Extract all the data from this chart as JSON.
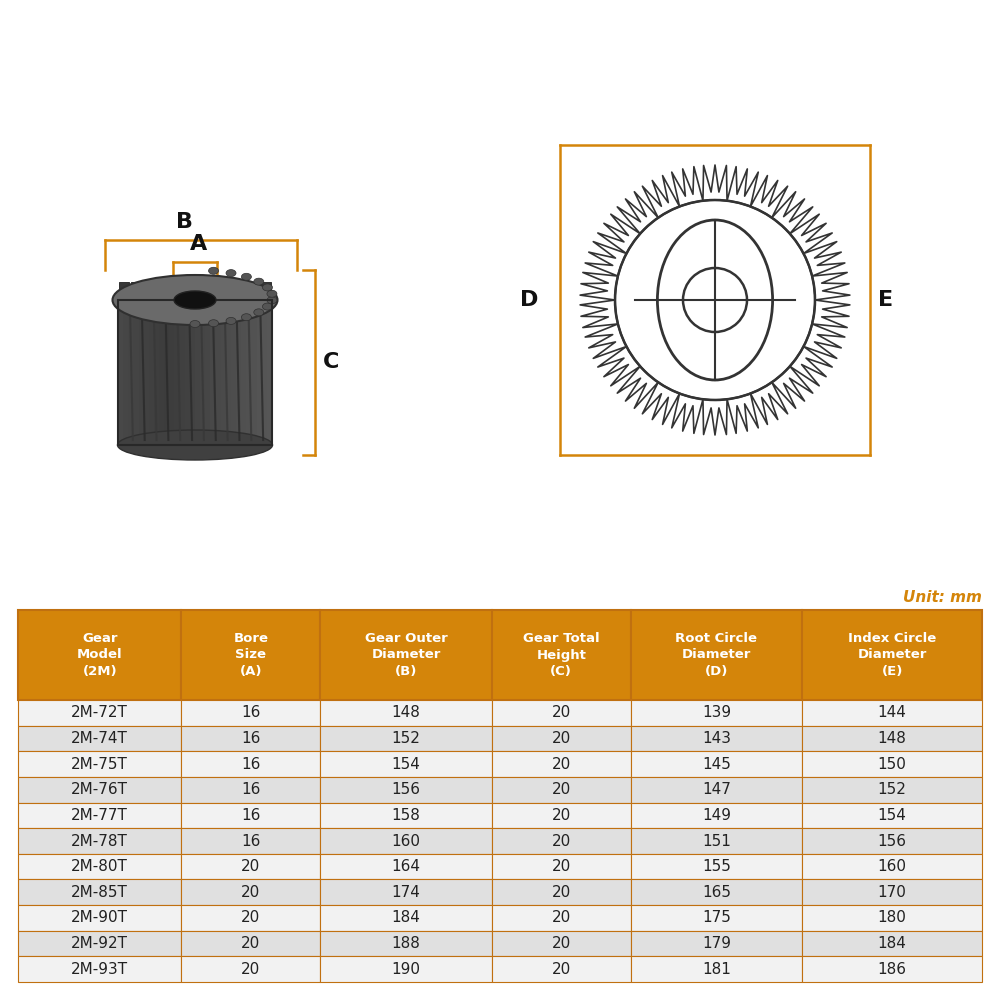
{
  "table_headers": [
    "Gear\nModel\n(2M)",
    "Bore\nSize\n(A)",
    "Gear Outer\nDiameter\n(B)",
    "Gear Total\nHeight\n(C)",
    "Root Circle\nDiameter\n(D)",
    "Index Circle\nDiameter\n(E)"
  ],
  "table_rows": [
    [
      "2M-72T",
      "16",
      "148",
      "20",
      "139",
      "144"
    ],
    [
      "2M-74T",
      "16",
      "152",
      "20",
      "143",
      "148"
    ],
    [
      "2M-75T",
      "16",
      "154",
      "20",
      "145",
      "150"
    ],
    [
      "2M-76T",
      "16",
      "156",
      "20",
      "147",
      "152"
    ],
    [
      "2M-77T",
      "16",
      "158",
      "20",
      "149",
      "154"
    ],
    [
      "2M-78T",
      "16",
      "160",
      "20",
      "151",
      "156"
    ],
    [
      "2M-80T",
      "20",
      "164",
      "20",
      "155",
      "160"
    ],
    [
      "2M-85T",
      "20",
      "174",
      "20",
      "165",
      "170"
    ],
    [
      "2M-90T",
      "20",
      "184",
      "20",
      "175",
      "180"
    ],
    [
      "2M-92T",
      "20",
      "188",
      "20",
      "179",
      "184"
    ],
    [
      "2M-93T",
      "20",
      "190",
      "20",
      "181",
      "186"
    ]
  ],
  "header_bg_color": "#D4850A",
  "header_text_color": "#FFFFFF",
  "row_odd_color": "#F2F2F2",
  "row_even_color": "#E0E0E0",
  "border_color": "#C07010",
  "unit_text": "Unit: mm",
  "unit_color": "#D4850A",
  "bg_color": "#FFFFFF",
  "label_color": "#D4850A",
  "diagram_line_color": "#333333",
  "gear_photo_color": "#5a5a5a",
  "gear_shadow_color": "#3a3a3a",
  "gear_light_color": "#8a8a8a"
}
